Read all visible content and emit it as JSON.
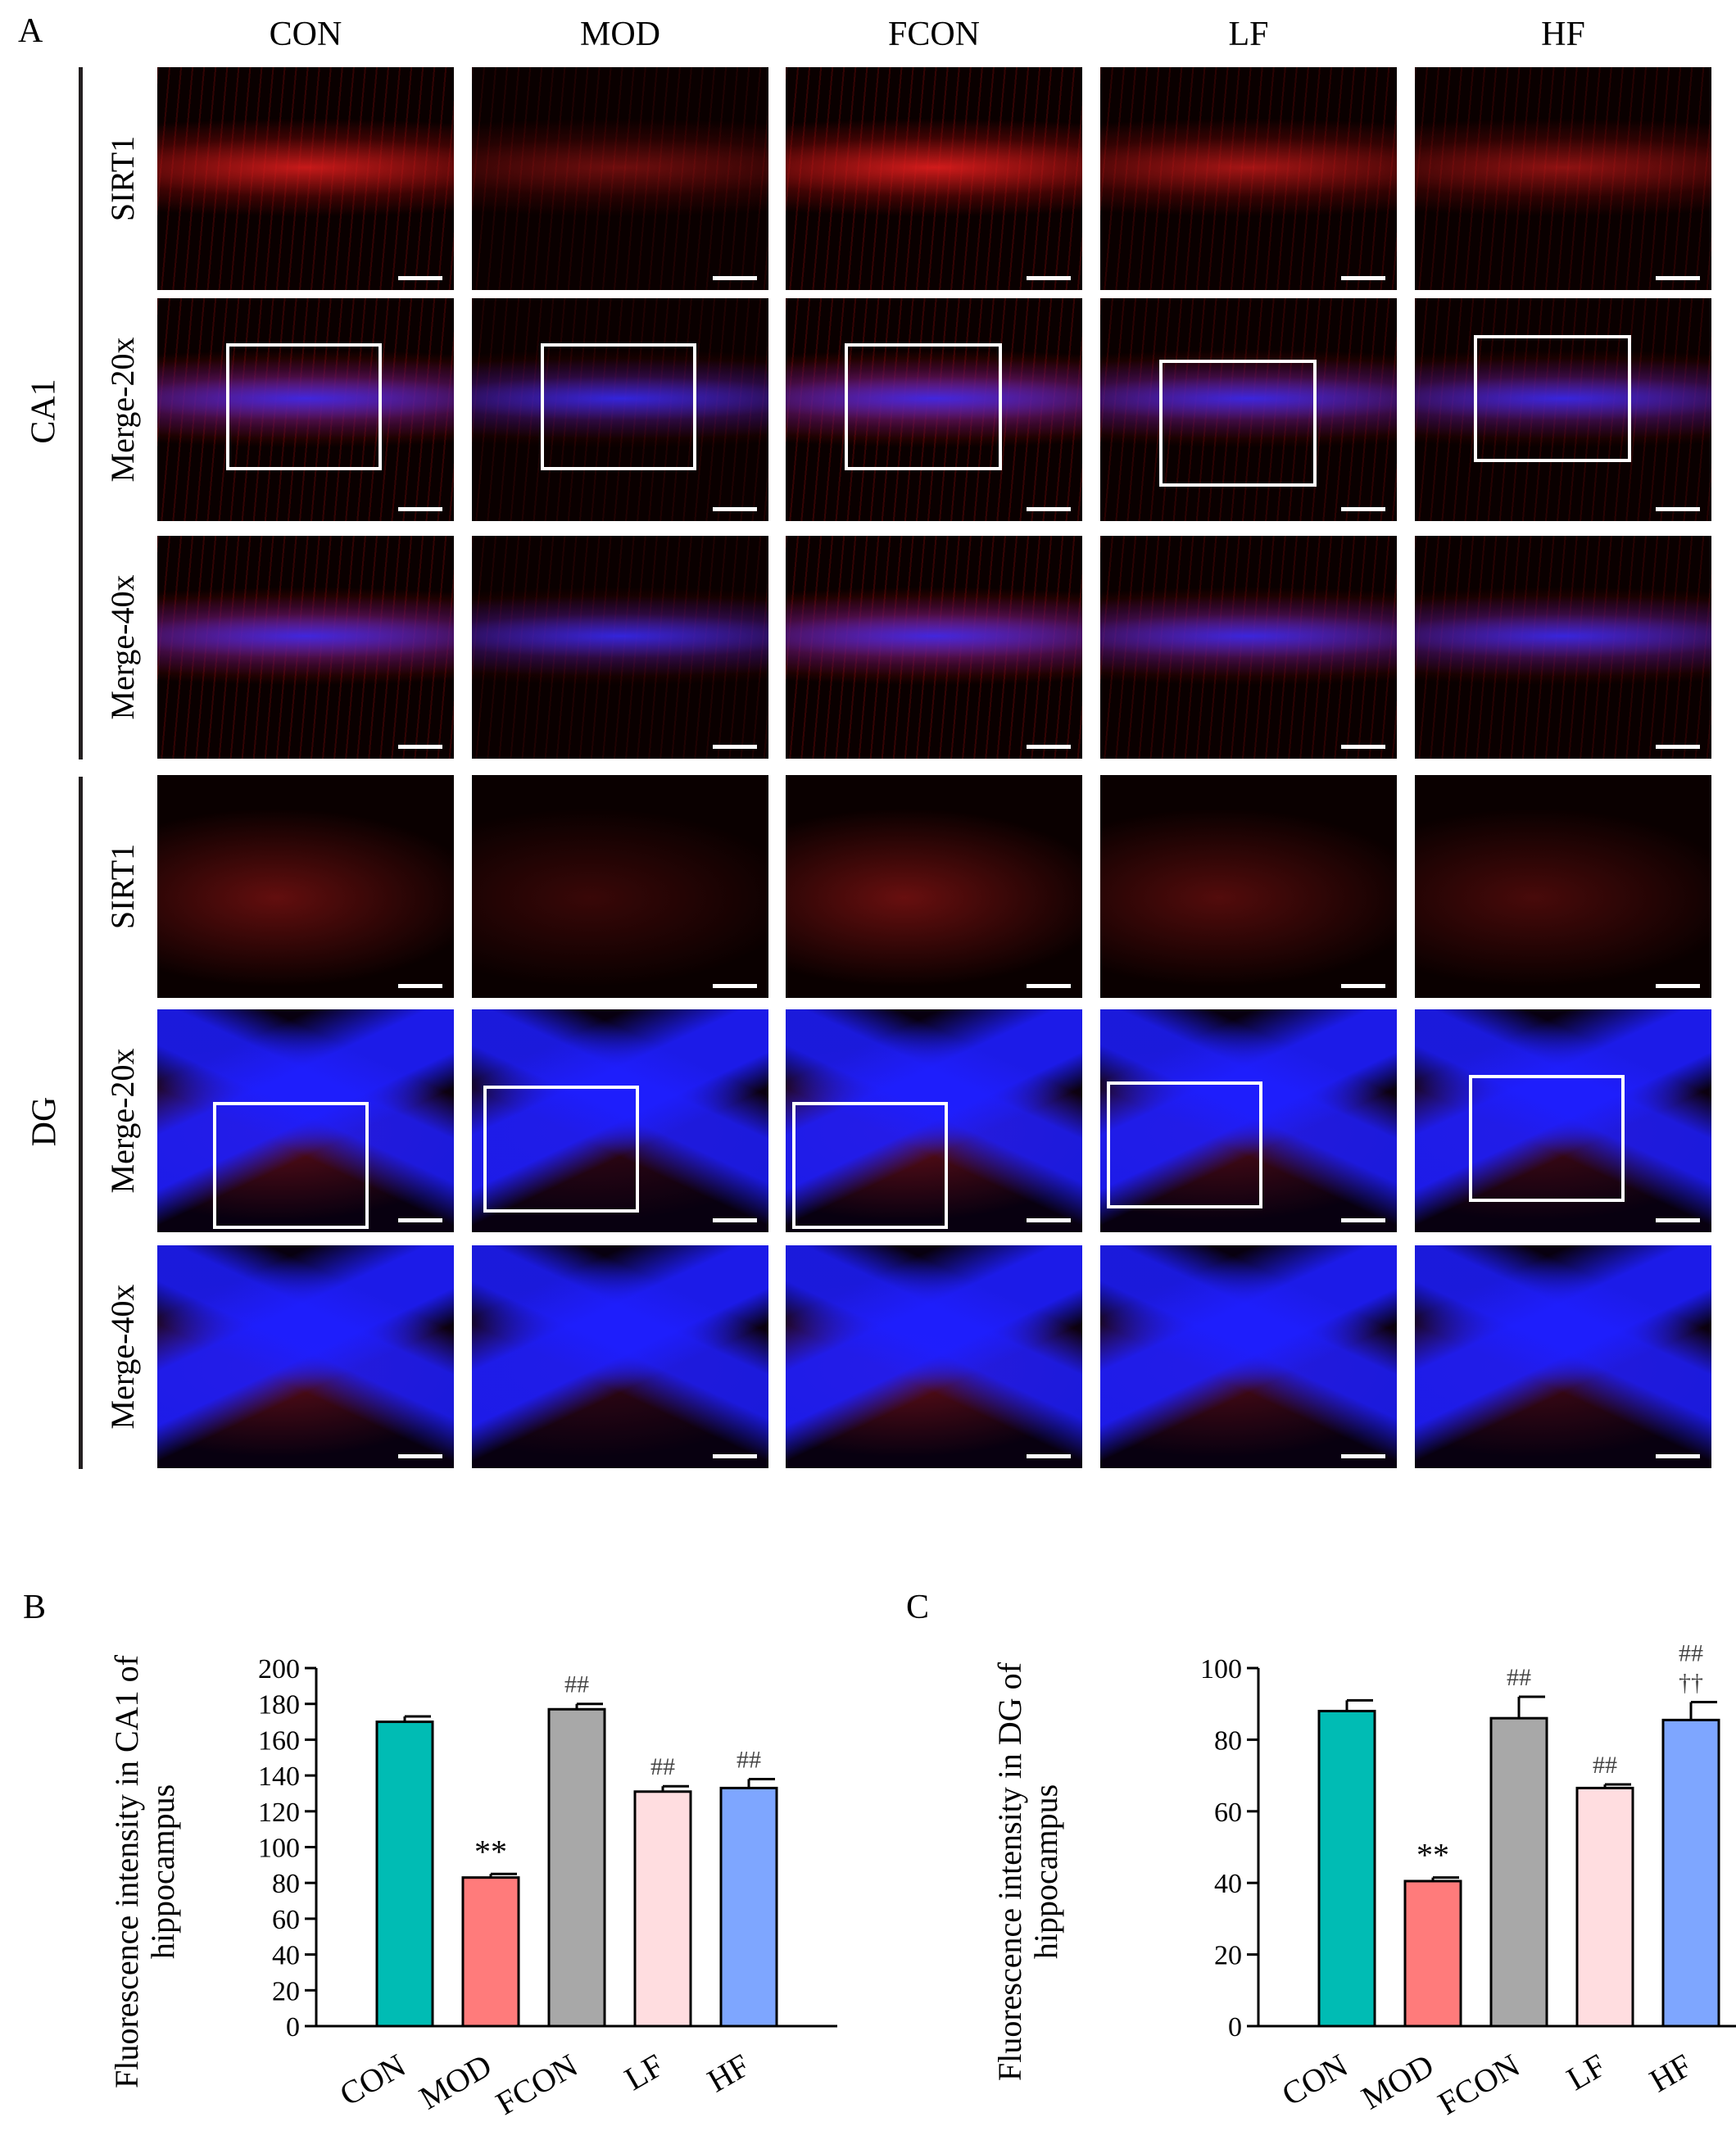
{
  "panel_a": {
    "letter": "A",
    "columns": [
      "CON",
      "MOD",
      "FCON",
      "LF",
      "HF"
    ],
    "regions": [
      {
        "name": "CA1",
        "rows": [
          "SIRT1",
          "Merge-20x",
          "Merge-40x"
        ]
      },
      {
        "name": "DG",
        "rows": [
          "SIRT1",
          "Merge-20x",
          "Merge-40x"
        ]
      }
    ]
  },
  "chart_data": [
    {
      "panel": "B",
      "type": "bar",
      "categories": [
        "CON",
        "MOD",
        "FCON",
        "LF",
        "HF"
      ],
      "values": [
        170,
        83,
        177,
        131,
        133
      ],
      "errors": [
        3,
        2,
        3,
        3,
        5
      ],
      "annotations": [
        "",
        "**",
        "##",
        "##",
        "##"
      ],
      "colors": [
        "#00bcb4",
        "#ff7b7b",
        "#a8a8a8",
        "#ffdde0",
        "#7ea6ff"
      ],
      "ylabel_lines": [
        "Fluorescence intensity in CA1 of",
        "hippocampus"
      ],
      "ylim": [
        0,
        200
      ],
      "yticks": [
        0,
        20,
        40,
        60,
        80,
        100,
        120,
        140,
        160,
        180,
        200
      ]
    },
    {
      "panel": "C",
      "type": "bar",
      "categories": [
        "CON",
        "MOD",
        "FCON",
        "LF",
        "HF"
      ],
      "values": [
        88,
        40.5,
        86,
        66.5,
        85.5
      ],
      "errors": [
        3,
        1,
        6,
        1,
        5
      ],
      "annotations": [
        "",
        "**",
        "##",
        "##",
        "##\n††"
      ],
      "colors": [
        "#00bcb4",
        "#ff7b7b",
        "#a8a8a8",
        "#ffdde0",
        "#7ea6ff"
      ],
      "ylabel_lines": [
        "Fluorescence intensity in DG of",
        "hippocampus"
      ],
      "ylim": [
        0,
        100
      ],
      "yticks": [
        0,
        20,
        40,
        60,
        80,
        100
      ]
    }
  ]
}
